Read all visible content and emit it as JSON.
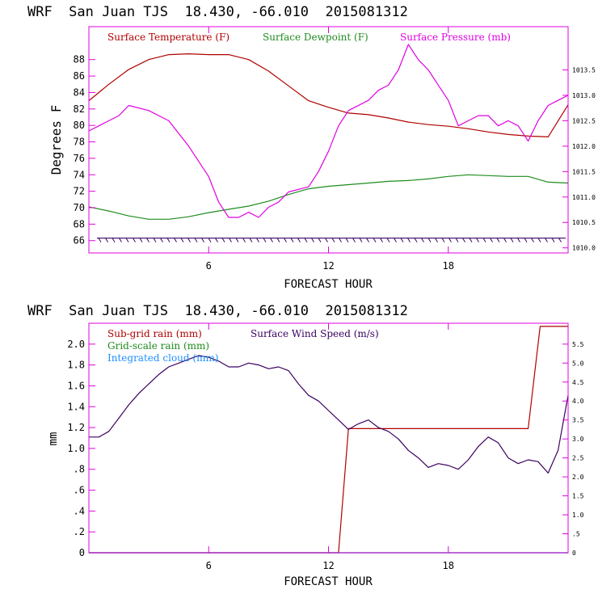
{
  "chart_data": [
    {
      "type": "line",
      "title": "WRF  San Juan TJS  18.430, -66.010  2015081312",
      "xlabel": "FORECAST HOUR",
      "ylabel": "Degrees F",
      "xlim": [
        0,
        24
      ],
      "ylim": [
        64.5,
        92
      ],
      "y2lim": [
        1009.9,
        1014.35
      ],
      "x_ticks": [
        6,
        12,
        18
      ],
      "y_ticks": [
        66,
        68,
        70,
        72,
        74,
        76,
        78,
        80,
        82,
        84,
        86,
        88
      ],
      "y2_ticks": [
        {
          "v": 1010.0,
          "t": "1010.0"
        },
        {
          "v": 1010.5,
          "t": "1010.5"
        },
        {
          "v": 1011.0,
          "t": "1011.0"
        },
        {
          "v": 1011.5,
          "t": "1011.5"
        },
        {
          "v": 1012.0,
          "t": "1012.0"
        },
        {
          "v": 1012.5,
          "t": "1012.5"
        },
        {
          "v": 1013.0,
          "t": "1013.0"
        },
        {
          "v": 1013.5,
          "t": "1013.5"
        }
      ],
      "colors": {
        "temperature": "#b00000",
        "dewpoint": "#1e8c1e",
        "pressure": "#e000e0",
        "axes": "#e000e0",
        "barbs": "#3a0060"
      },
      "series": [
        {
          "name": "Surface Temperature (F)",
          "color": "#b00000",
          "axis": "left",
          "x": [
            0,
            1,
            2,
            3,
            4,
            5,
            6,
            7,
            8,
            9,
            10,
            11,
            12,
            13,
            14,
            15,
            16,
            17,
            18,
            19,
            20,
            21,
            22,
            23,
            24
          ],
          "y": [
            83.0,
            85.0,
            86.8,
            88.0,
            88.6,
            88.7,
            88.6,
            88.6,
            88.0,
            86.6,
            84.8,
            83.0,
            82.2,
            81.5,
            81.3,
            80.9,
            80.4,
            80.1,
            79.9,
            79.6,
            79.2,
            78.9,
            78.7,
            78.6,
            82.5
          ]
        },
        {
          "name": "Surface Dewpoint (F)",
          "color": "#1e8c1e",
          "axis": "left",
          "x": [
            0,
            1,
            2,
            3,
            4,
            5,
            6,
            7,
            8,
            9,
            10,
            11,
            12,
            13,
            14,
            15,
            16,
            17,
            18,
            19,
            20,
            21,
            22,
            23,
            24
          ],
          "y": [
            70.1,
            69.6,
            69.0,
            68.6,
            68.6,
            68.9,
            69.4,
            69.8,
            70.2,
            70.8,
            71.6,
            72.3,
            72.6,
            72.8,
            73.0,
            73.2,
            73.3,
            73.5,
            73.8,
            74.0,
            73.9,
            73.8,
            73.8,
            73.1,
            73.0
          ]
        },
        {
          "name": "Surface Pressure (mb)",
          "color": "#e000e0",
          "axis": "right",
          "x": [
            0,
            0.5,
            1,
            1.5,
            2,
            3,
            3.5,
            4,
            5,
            6,
            6.5,
            7,
            7.5,
            8,
            8.5,
            9,
            9.5,
            10,
            11,
            11.5,
            12,
            12.5,
            13,
            14,
            14.5,
            15,
            15.5,
            16,
            16.5,
            17,
            17.5,
            18,
            18.5,
            19,
            19.5,
            20,
            20.5,
            21,
            21.5,
            22,
            22.5,
            23,
            23.5,
            24
          ],
          "y": [
            1012.3,
            1012.4,
            1012.5,
            1012.6,
            1012.8,
            1012.7,
            1012.6,
            1012.5,
            1012.0,
            1011.4,
            1010.9,
            1010.6,
            1010.6,
            1010.7,
            1010.6,
            1010.8,
            1010.9,
            1011.1,
            1011.2,
            1011.5,
            1011.9,
            1012.4,
            1012.7,
            1012.9,
            1013.1,
            1013.2,
            1013.5,
            1014.0,
            1013.7,
            1013.5,
            1013.2,
            1012.9,
            1012.4,
            1012.5,
            1012.6,
            1012.6,
            1012.4,
            1012.5,
            1012.4,
            1012.1,
            1012.5,
            1012.8,
            1012.9,
            1013.0
          ]
        }
      ]
    },
    {
      "type": "line",
      "title": "WRF  San Juan TJS  18.430, -66.010  2015081312",
      "xlabel": "FORECAST HOUR",
      "ylabel": "mm",
      "xlim": [
        0,
        24
      ],
      "ylim": [
        0,
        2.2
      ],
      "y2lim": [
        0,
        6.05
      ],
      "x_ticks": [
        6,
        12,
        18
      ],
      "y_ticks": [
        {
          "v": 0,
          "t": "0"
        },
        {
          "v": 0.2,
          "t": ".2"
        },
        {
          "v": 0.4,
          "t": ".4"
        },
        {
          "v": 0.6,
          "t": ".6"
        },
        {
          "v": 0.8,
          "t": ".8"
        },
        {
          "v": 1.0,
          "t": "1.0"
        },
        {
          "v": 1.2,
          "t": "1.2"
        },
        {
          "v": 1.4,
          "t": "1.4"
        },
        {
          "v": 1.6,
          "t": "1.6"
        },
        {
          "v": 1.8,
          "t": "1.8"
        },
        {
          "v": 2.0,
          "t": "2.0"
        }
      ],
      "y2_ticks": [
        {
          "v": 0,
          "t": "0"
        },
        {
          "v": 0.5,
          "t": ".5"
        },
        {
          "v": 1.0,
          "t": "1.0"
        },
        {
          "v": 1.5,
          "t": "1.5"
        },
        {
          "v": 2.0,
          "t": "2.0"
        },
        {
          "v": 2.5,
          "t": "2.5"
        },
        {
          "v": 3.0,
          "t": "3.0"
        },
        {
          "v": 3.5,
          "t": "3.5"
        },
        {
          "v": 4.0,
          "t": "4.0"
        },
        {
          "v": 4.5,
          "t": "4.5"
        },
        {
          "v": 5.0,
          "t": "5.0"
        },
        {
          "v": 5.5,
          "t": "5.5"
        }
      ],
      "colors": {
        "subgrid": "#b00000",
        "gridscale": "#1e8c1e",
        "cloud": "#1e90ff",
        "wind": "#3a0060",
        "axes": "#e000e0"
      },
      "series": [
        {
          "name": "Sub-grid rain (mm)",
          "color": "#b00000",
          "axis": "left",
          "x": [
            0,
            12.5,
            13.0,
            22.0,
            22.6,
            24
          ],
          "y": [
            0,
            0,
            1.19,
            1.19,
            2.17,
            2.17
          ]
        },
        {
          "name": "Grid-scale rain (mm)",
          "color": "#1e8c1e",
          "axis": "left",
          "x": [
            0,
            24
          ],
          "y": [
            0,
            0
          ]
        },
        {
          "name": "Integrated cloud (mm)",
          "color": "#1e90ff",
          "axis": "left",
          "x": [
            0,
            24
          ],
          "y": [
            0,
            0
          ]
        },
        {
          "name": "Surface Wind Speed (m/s)",
          "color": "#3a0060",
          "axis": "right",
          "x": [
            0,
            0.5,
            1,
            1.5,
            2,
            2.5,
            3,
            3.5,
            4,
            4.5,
            5,
            5.5,
            6,
            6.5,
            7,
            7.5,
            8,
            8.5,
            9,
            9.5,
            10,
            10.5,
            11,
            11.5,
            12,
            12.5,
            13,
            13.5,
            14,
            14.5,
            15,
            15.5,
            16,
            16.5,
            17,
            17.5,
            18,
            18.5,
            19,
            19.5,
            20,
            20.5,
            21,
            21.5,
            22,
            22.5,
            23,
            23.5,
            24
          ],
          "y": [
            3.05,
            3.05,
            3.2,
            3.55,
            3.9,
            4.2,
            4.45,
            4.7,
            4.9,
            5.0,
            5.1,
            5.2,
            5.15,
            5.05,
            4.9,
            4.9,
            5.0,
            4.95,
            4.85,
            4.9,
            4.8,
            4.45,
            4.15,
            4.0,
            3.75,
            3.5,
            3.25,
            3.4,
            3.5,
            3.3,
            3.2,
            3.0,
            2.7,
            2.5,
            2.25,
            2.35,
            2.3,
            2.2,
            2.45,
            2.8,
            3.05,
            2.9,
            2.5,
            2.35,
            2.45,
            2.4,
            2.1,
            2.7,
            4.15
          ]
        }
      ]
    }
  ]
}
